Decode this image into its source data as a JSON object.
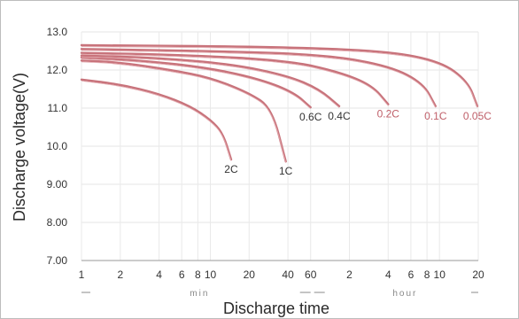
{
  "chart_data": {
    "type": "line",
    "title": "",
    "xlabel": "Discharge time",
    "ylabel": "Discharge voltage(V)",
    "x_scale": "log",
    "x_unit": "min",
    "ylim": [
      7.0,
      13.0
    ],
    "y_ticks": [
      "13.0",
      "12.0",
      "11.0",
      "10.0",
      "9.00",
      "8.00",
      "7.00"
    ],
    "x_ticks": [
      {
        "label": "1",
        "min": 1
      },
      {
        "label": "2",
        "min": 2
      },
      {
        "label": "4",
        "min": 4
      },
      {
        "label": "6",
        "min": 6
      },
      {
        "label": "8",
        "min": 8
      },
      {
        "label": "10",
        "min": 10
      },
      {
        "label": "20",
        "min": 20
      },
      {
        "label": "40",
        "min": 40
      },
      {
        "label": "60",
        "min": 60
      },
      {
        "label": "2",
        "min": 120
      },
      {
        "label": "4",
        "min": 240
      },
      {
        "label": "6",
        "min": 360
      },
      {
        "label": "8",
        "min": 480
      },
      {
        "label": "10",
        "min": 600
      },
      {
        "label": "20",
        "min": 1200
      }
    ],
    "range_labels": {
      "min": "min",
      "hour": "hour"
    },
    "grid": true,
    "label_colors": {
      "dark": "#333333",
      "red": "#c0606a"
    },
    "line_color": "#c8737b",
    "series": [
      {
        "name": "2C",
        "color": "dark",
        "x": [
          1,
          2,
          4,
          7,
          10,
          12.5,
          14.5
        ],
        "y": [
          11.75,
          11.62,
          11.38,
          11.05,
          10.7,
          10.35,
          9.65
        ]
      },
      {
        "name": "1C",
        "color": "dark",
        "x": [
          1,
          2,
          5,
          10,
          20,
          30,
          38.5
        ],
        "y": [
          12.25,
          12.2,
          12.0,
          11.8,
          11.4,
          11.0,
          9.6
        ]
      },
      {
        "name": "0.6C",
        "color": "dark",
        "x": [
          1,
          3,
          10,
          25,
          45,
          60
        ],
        "y": [
          12.33,
          12.25,
          12.05,
          11.75,
          11.4,
          11.02
        ]
      },
      {
        "name": "0.4C",
        "color": "dark",
        "x": [
          1,
          4,
          15,
          40,
          70,
          100
        ],
        "y": [
          12.38,
          12.32,
          12.15,
          11.85,
          11.5,
          11.05
        ]
      },
      {
        "name": "0.2C",
        "color": "red",
        "x": [
          1,
          6,
          40,
          100,
          180,
          240
        ],
        "y": [
          12.45,
          12.4,
          12.25,
          11.95,
          11.6,
          11.1
        ]
      },
      {
        "name": "0.1C",
        "color": "red",
        "x": [
          1,
          10,
          80,
          250,
          450,
          560
        ],
        "y": [
          12.55,
          12.5,
          12.4,
          12.1,
          11.65,
          11.05
        ]
      },
      {
        "name": "0.05C",
        "color": "red",
        "x": [
          1,
          20,
          200,
          600,
          1000,
          1180
        ],
        "y": [
          12.65,
          12.62,
          12.52,
          12.25,
          11.7,
          11.05
        ]
      }
    ]
  }
}
